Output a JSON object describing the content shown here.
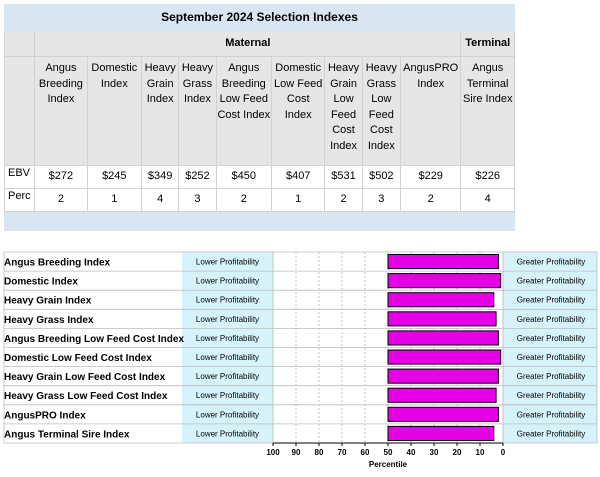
{
  "table": {
    "title": "September 2024 Selection Indexes",
    "groups": [
      {
        "label": "Maternal",
        "span": 9
      },
      {
        "label": "Terminal",
        "span": 1
      }
    ],
    "headers": [
      "Angus Breeding Index",
      "Domestic Index",
      "Heavy Grain Index",
      "Heavy Grass Index",
      "Angus Breeding Low Feed Cost Index",
      "Domestic Low Feed Cost Index",
      "Heavy Grain Low Feed Cost Index",
      "Heavy Grass Low Feed Cost Index",
      "AngusPRO Index",
      "Angus Terminal Sire Index"
    ],
    "rows": [
      {
        "label": "EBV",
        "values": [
          "$272",
          "$245",
          "$349",
          "$252",
          "$450",
          "$407",
          "$531",
          "$502",
          "$229",
          "$226"
        ]
      },
      {
        "label": "Perc",
        "values": [
          "2",
          "1",
          "4",
          "3",
          "2",
          "1",
          "2",
          "3",
          "2",
          "4"
        ]
      }
    ]
  },
  "chart_data": {
    "type": "bar",
    "orientation": "horizontal",
    "categories": [
      "Angus Breeding Index",
      "Domestic Index",
      "Heavy Grain Index",
      "Heavy Grass Index",
      "Angus Breeding Low Feed Cost Index",
      "Domestic Low Feed Cost Index",
      "Heavy Grain Low Feed Cost Index",
      "Heavy Grass Low Feed Cost Index",
      "AngusPRO Index",
      "Angus Terminal Sire Index"
    ],
    "values": [
      2,
      1,
      4,
      3,
      2,
      1,
      2,
      3,
      2,
      4
    ],
    "bar_start": 50,
    "xlabel": "Percentile",
    "xlim": [
      100,
      0
    ],
    "x_reversed": true,
    "ticks": [
      100,
      90,
      80,
      70,
      60,
      50,
      40,
      30,
      20,
      10,
      0
    ],
    "left_zone_label": "Lower Profitability",
    "right_zone_label": "Greater Profitability",
    "grid": true,
    "colors": {
      "bar": "#e600e6",
      "zone": "#d6f3fb",
      "grid": "#b8b8b8"
    }
  }
}
